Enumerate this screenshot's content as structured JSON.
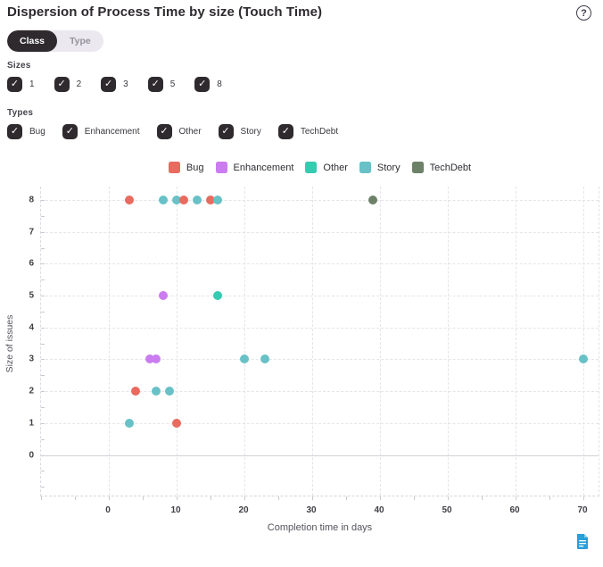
{
  "header": {
    "title": "Dispersion of Process Time by size (Touch Time)",
    "help_glyph": "?"
  },
  "toggle": {
    "options": [
      {
        "label": "Class",
        "selected": true
      },
      {
        "label": "Type",
        "selected": false
      }
    ]
  },
  "filters": {
    "sizes": {
      "label": "Sizes",
      "options": [
        {
          "label": "1",
          "checked": true
        },
        {
          "label": "2",
          "checked": true
        },
        {
          "label": "3",
          "checked": true
        },
        {
          "label": "5",
          "checked": true
        },
        {
          "label": "8",
          "checked": true
        }
      ]
    },
    "types": {
      "label": "Types",
      "options": [
        {
          "label": "Bug",
          "checked": true
        },
        {
          "label": "Enhancement",
          "checked": true
        },
        {
          "label": "Other",
          "checked": true
        },
        {
          "label": "Story",
          "checked": true
        },
        {
          "label": "TechDebt",
          "checked": true
        }
      ]
    }
  },
  "colors": {
    "Bug": "#e96a5f",
    "Enhancement": "#cb7cf0",
    "Other": "#35cbb0",
    "Story": "#68c1c6",
    "TechDebt": "#6d8168",
    "checkbox": "#2e2a2d",
    "doc_icon": "#2a9fd8"
  },
  "chart_data": {
    "type": "scatter",
    "xlabel": "Completion time in days",
    "ylabel": "Size of issues",
    "xlim": [
      -10,
      72.5
    ],
    "ylim": [
      -1.3,
      8.42
    ],
    "xticks": [
      0,
      10,
      20,
      30,
      40,
      50,
      60,
      70
    ],
    "yticks": [
      0,
      1,
      2,
      3,
      4,
      5,
      6,
      7,
      8
    ],
    "minor_x_step": 5,
    "minor_y_step": 0.5,
    "grid": true,
    "legend_position": "top-center",
    "legend": [
      "Bug",
      "Enhancement",
      "Other",
      "Story",
      "TechDebt"
    ],
    "series": [
      {
        "name": "Bug",
        "color": "#e96a5f",
        "points": [
          [
            3,
            8
          ],
          [
            11,
            8
          ],
          [
            15,
            8
          ],
          [
            4,
            2
          ],
          [
            10,
            1
          ]
        ]
      },
      {
        "name": "Enhancement",
        "color": "#cb7cf0",
        "points": [
          [
            8,
            5
          ],
          [
            6,
            3
          ],
          [
            7,
            3
          ]
        ]
      },
      {
        "name": "Other",
        "color": "#35cbb0",
        "points": [
          [
            16,
            5
          ]
        ]
      },
      {
        "name": "Story",
        "color": "#68c1c6",
        "points": [
          [
            8,
            8
          ],
          [
            10,
            8
          ],
          [
            13,
            8
          ],
          [
            16,
            8
          ],
          [
            20,
            3
          ],
          [
            23,
            3
          ],
          [
            70,
            3
          ],
          [
            7,
            2
          ],
          [
            9,
            2
          ],
          [
            3,
            1
          ]
        ]
      },
      {
        "name": "TechDebt",
        "color": "#6d8168",
        "points": [
          [
            39,
            8
          ]
        ]
      }
    ]
  }
}
